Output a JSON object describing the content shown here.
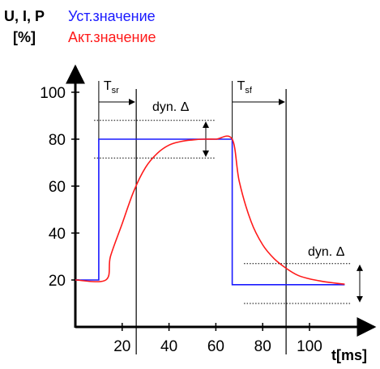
{
  "chart_data": {
    "type": "line",
    "title": "",
    "ylabel_line1": "U, I, P",
    "ylabel_line2": "[%]",
    "xlabel": "t[ms]",
    "xlim": [
      0,
      118
    ],
    "ylim": [
      0,
      100
    ],
    "x_ticks": [
      20,
      40,
      60,
      80,
      100
    ],
    "y_ticks": [
      20,
      40,
      60,
      80,
      100
    ],
    "grid": false,
    "legend_position": "top",
    "series": [
      {
        "name": "Уст.значение",
        "color": "#1a1aff",
        "x": [
          0,
          10,
          10,
          67,
          67,
          115
        ],
        "y": [
          20,
          20,
          80,
          80,
          18,
          18
        ]
      },
      {
        "name": "Акт.значение",
        "color": "#ff1a1a",
        "x": [
          0,
          13,
          15,
          20,
          25,
          30,
          35,
          40,
          45,
          50,
          55,
          60,
          67,
          70,
          75,
          80,
          85,
          90,
          95,
          100,
          105,
          110,
          115
        ],
        "y": [
          20,
          20,
          30,
          44,
          58,
          68,
          74,
          77.5,
          79,
          79.7,
          80,
          80,
          80,
          62,
          45,
          35,
          29,
          25,
          22,
          20.5,
          19.5,
          18.8,
          18.2
        ]
      }
    ],
    "annotations": {
      "tsr": {
        "base": "T",
        "sub": "sr",
        "x_start": 10,
        "x_end": 26
      },
      "tsf": {
        "base": "T",
        "sub": "sf",
        "x_start": 67,
        "x_end": 90
      },
      "dyn_upper": {
        "label": "dyn. Δ",
        "y_high": 88,
        "y_low": 72,
        "x_from": 8,
        "x_to": 60
      },
      "dyn_lower": {
        "label": "dyn. Δ",
        "y_high": 27,
        "y_low": 10,
        "x_from": 72,
        "x_to": 118
      }
    }
  }
}
